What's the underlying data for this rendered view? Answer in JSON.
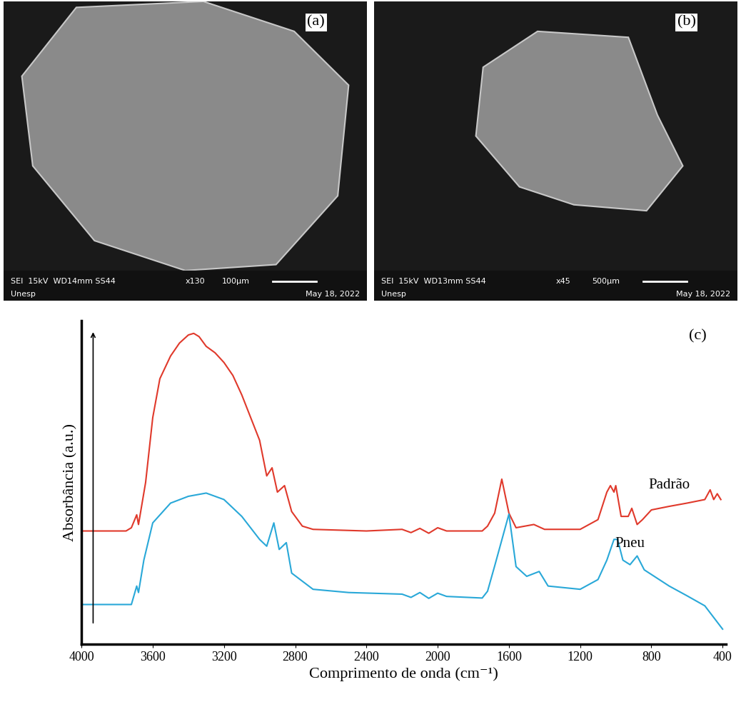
{
  "images": [
    {
      "label": "(a)",
      "detector": "SEI  15kV  WD14mm SS44",
      "magnification": "x130",
      "scale": "100µm",
      "institution": "Unesp",
      "date": "May 18, 2022"
    },
    {
      "label": "(b)",
      "detector": "SEI  15kV  WD13mm SS44",
      "magnification": "x45",
      "scale": "500µm",
      "institution": "Unesp",
      "date": "May 18, 2022"
    }
  ],
  "chart_data": {
    "type": "line",
    "label": "(c)",
    "x_label": "Comprimento de onda (cm⁻¹)",
    "y_label": "Absorbância (a.u.)",
    "xlim": [
      4000,
      380
    ],
    "xticks": [
      4000,
      3600,
      3200,
      2800,
      2400,
      2000,
      1600,
      1200,
      800,
      400
    ],
    "ylim": [
      0,
      100
    ],
    "tick_labels": "x",
    "grid": false,
    "series": [
      {
        "name": "Padrão",
        "color": "#e0392b",
        "x": [
          4000,
          3750,
          3720,
          3690,
          3680,
          3640,
          3600,
          3560,
          3500,
          3450,
          3400,
          3370,
          3340,
          3300,
          3250,
          3200,
          3150,
          3100,
          3050,
          3000,
          2960,
          2930,
          2900,
          2860,
          2820,
          2760,
          2700,
          2400,
          2200,
          2150,
          2100,
          2050,
          2000,
          1950,
          1800,
          1750,
          1720,
          1680,
          1640,
          1600,
          1560,
          1460,
          1400,
          1200,
          1100,
          1050,
          1030,
          1010,
          1000,
          970,
          930,
          910,
          880,
          850,
          800,
          700,
          600,
          500,
          470,
          450,
          430,
          410
        ],
        "values": [
          35,
          35,
          36,
          40,
          37,
          50,
          70,
          82,
          89,
          93,
          95.5,
          96,
          95,
          92,
          90,
          87,
          83,
          77,
          70,
          63,
          52,
          54.5,
          47,
          49,
          41,
          36.5,
          35.5,
          35,
          35.5,
          34.5,
          35.8,
          34.3,
          36,
          35,
          35,
          35,
          36.5,
          40.5,
          51,
          40.5,
          36,
          37,
          35.5,
          35.5,
          38.5,
          47,
          49,
          47,
          49,
          39.5,
          39.5,
          42,
          37,
          38.5,
          41.5,
          42.6,
          43.6,
          44.7,
          47.7,
          44.7,
          46.5,
          44.7
        ]
      },
      {
        "name": "Pneu",
        "color": "#29a8d8",
        "x": [
          4000,
          3720,
          3690,
          3680,
          3650,
          3600,
          3500,
          3400,
          3300,
          3200,
          3100,
          3000,
          2960,
          2920,
          2890,
          2850,
          2820,
          2700,
          2500,
          2200,
          2150,
          2100,
          2050,
          2000,
          1950,
          1750,
          1720,
          1680,
          1600,
          1560,
          1500,
          1430,
          1380,
          1200,
          1100,
          1050,
          1010,
          990,
          960,
          920,
          880,
          840,
          700,
          600,
          500,
          400
        ],
        "values": [
          12.3,
          12.3,
          18,
          16,
          26,
          37.5,
          43.6,
          45.7,
          46.7,
          44.7,
          39.5,
          32.4,
          30.3,
          37.5,
          29.3,
          31.4,
          22,
          17,
          16,
          15.5,
          14.5,
          16,
          14.2,
          15.8,
          14.8,
          14.3,
          16.4,
          24.2,
          40.2,
          24,
          21,
          22.5,
          18,
          17,
          20,
          26,
          32.4,
          32.4,
          26,
          24.6,
          27.3,
          23,
          18,
          15,
          11.9,
          4.7
        ]
      }
    ]
  }
}
